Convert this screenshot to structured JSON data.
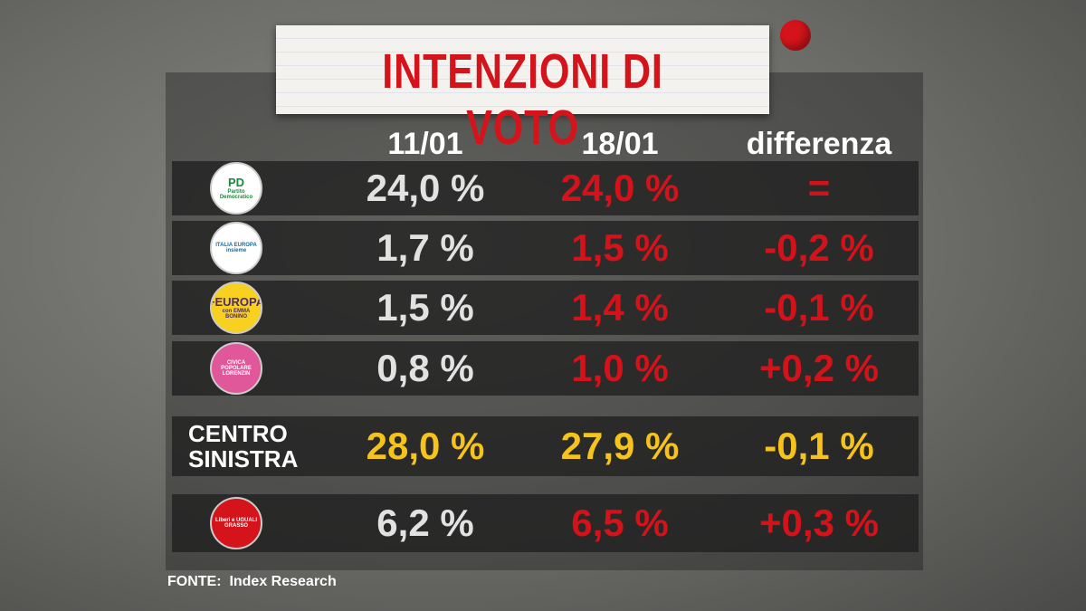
{
  "title": "INTENZIONI DI VOTO",
  "table": {
    "header": [
      "11/01",
      "18/01",
      "differenza"
    ],
    "rows": [
      {
        "logo": [
          "PD",
          "Partito Democratico"
        ],
        "cells": [
          "24,0 %",
          "24,0 %",
          "="
        ]
      },
      {
        "logo": [
          "ITALIA EUROPA",
          "insieme"
        ],
        "cells": [
          "1,7 %",
          "1,5 %",
          "-0,2 %"
        ]
      },
      {
        "logo": [
          "+EUROPA",
          "con EMMA BONINO"
        ],
        "cells": [
          "1,5 %",
          "1,4 %",
          "-0,1 %"
        ]
      },
      {
        "logo": [
          "CIVICA POPOLARE",
          "LORENZIN"
        ],
        "cells": [
          "0,8 %",
          "1,0 %",
          "+0,2 %"
        ]
      },
      {
        "label": [
          "CENTRO",
          "SINISTRA"
        ],
        "cells": [
          "28,0 %",
          "27,9 %",
          "-0,1 %"
        ]
      },
      {
        "logo": [
          "Liberi e UGUALI",
          "GRASSO"
        ],
        "cells": [
          "6,2 %",
          "6,5 %",
          "+0,3 %"
        ]
      }
    ]
  },
  "source": {
    "label": "FONTE:",
    "text": "Index Research"
  }
}
